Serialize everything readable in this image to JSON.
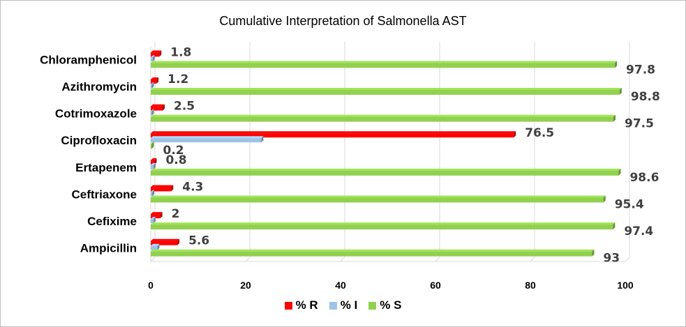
{
  "chart_data": {
    "type": "bar",
    "orientation": "horizontal",
    "title": "Cumulative Interpretation of Salmonella AST",
    "categories": [
      "Chloramphenicol",
      "Azithromycin",
      "Cotrimoxazole",
      "Ciprofloxacin",
      "Ertapenem",
      "Ceftriaxone",
      "Cefixime",
      "Ampicillin"
    ],
    "series": [
      {
        "name": "% R",
        "color": "#ff0000",
        "values": [
          1.8,
          1.2,
          2.5,
          76.5,
          0.8,
          4.3,
          2,
          5.6
        ],
        "labels": [
          "1.8",
          "1.2",
          "2.5",
          "76.5",
          "0.8",
          "4.3",
          "2",
          "5.6"
        ]
      },
      {
        "name": "% I",
        "color": "#9dc3e6",
        "values": [
          0.4,
          0,
          0,
          23.3,
          0.6,
          0.3,
          0.6,
          1.4
        ],
        "labels": [
          "",
          "",
          "",
          "",
          "",
          "",
          "",
          ""
        ]
      },
      {
        "name": "% S",
        "color": "#92d050",
        "values": [
          97.8,
          98.8,
          97.5,
          0.2,
          98.6,
          95.4,
          97.4,
          93
        ],
        "labels": [
          "97.8",
          "98.8",
          "97.5",
          "0.2",
          "98.6",
          "95.4",
          "97.4",
          "93"
        ]
      }
    ],
    "xlim": [
      0,
      100
    ],
    "xticks": [
      0,
      20,
      40,
      60,
      80,
      100
    ],
    "grid": true,
    "legend_position": "bottom"
  }
}
